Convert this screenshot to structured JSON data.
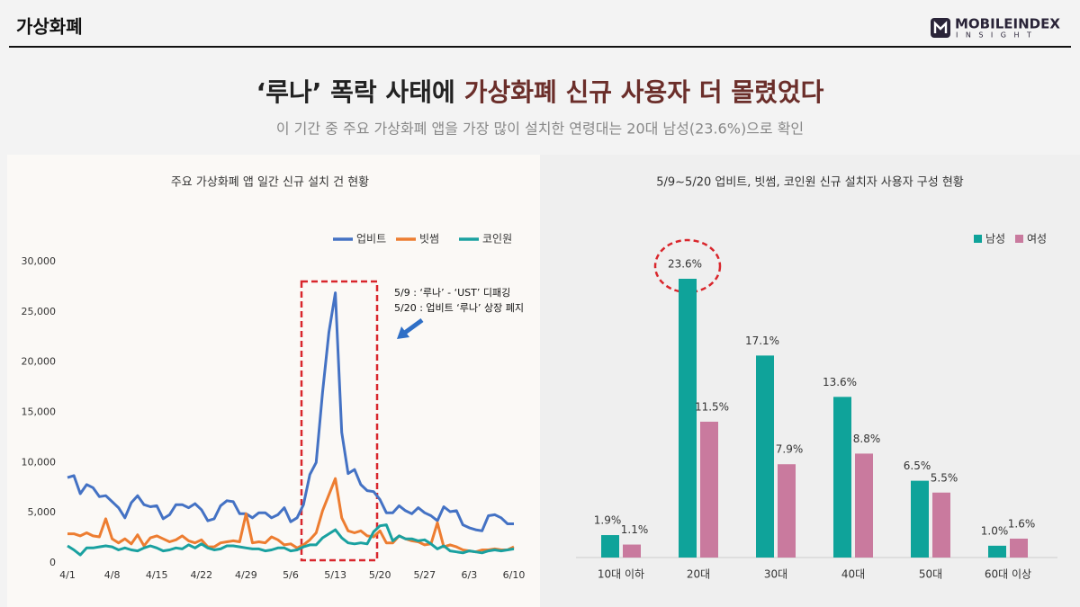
{
  "header": {
    "section": "가상화폐",
    "logo": "MOBILEINDEX",
    "logo_sub": "INSIGHT"
  },
  "headline": {
    "lead": "‘루나’ 폭락 사태에",
    "highlight": "가상화폐 신규 사용자 더 몰렸었다",
    "subtitle": "이 기간 중 주요 가상화폐 앱을 가장 많이 설치한 연령대는 20대 남성(23.6%)으로 확인"
  },
  "chart_data": [
    {
      "type": "line",
      "title": "주요 가상화폐 앱 일간 신규 설치 건 현황",
      "categories": [
        "4/1",
        null,
        null,
        null,
        null,
        null,
        null,
        "4/8",
        null,
        null,
        null,
        null,
        null,
        null,
        "4/15",
        null,
        null,
        null,
        null,
        null,
        null,
        "4/22",
        null,
        null,
        null,
        null,
        null,
        null,
        "4/29",
        null,
        null,
        null,
        null,
        null,
        null,
        "5/6",
        null,
        null,
        null,
        null,
        null,
        null,
        "5/13",
        null,
        null,
        null,
        null,
        null,
        null,
        "5/20",
        null,
        null,
        null,
        null,
        null,
        null,
        "5/27",
        null,
        null,
        null,
        null,
        null,
        null,
        "6/3",
        null,
        null,
        null,
        null,
        null,
        null,
        "6/10"
      ],
      "series": [
        {
          "name": "업비트",
          "color": "#4472c4",
          "values": [
            8500,
            8700,
            6900,
            7800,
            7500,
            6600,
            6700,
            6100,
            5500,
            4500,
            6000,
            6700,
            5800,
            5600,
            5700,
            4400,
            4800,
            5800,
            5800,
            5500,
            5900,
            5300,
            4200,
            4400,
            5700,
            6200,
            6100,
            4900,
            4900,
            4500,
            5000,
            5000,
            4500,
            4800,
            5500,
            4100,
            4500,
            5800,
            8800,
            10000,
            17000,
            23000,
            26900,
            13000,
            8900,
            9300,
            7800,
            7200,
            7100,
            6300,
            5000,
            5000,
            5700,
            5200,
            4900,
            5500,
            5000,
            4700,
            4200,
            5600,
            5100,
            5200,
            3800,
            3500,
            3300,
            3200,
            4700,
            4800,
            4500,
            3900,
            3900
          ]
        },
        {
          "name": "빗썸",
          "color": "#ed7d31",
          "values": [
            2900,
            2900,
            2700,
            3000,
            2700,
            2600,
            4400,
            2400,
            2000,
            2400,
            1900,
            2800,
            1700,
            2500,
            2700,
            2400,
            2100,
            2300,
            2700,
            2200,
            2000,
            2300,
            1600,
            1600,
            2000,
            2100,
            2200,
            2100,
            4900,
            2000,
            2100,
            2000,
            2600,
            2300,
            1800,
            1900,
            1500,
            1800,
            2300,
            3000,
            5200,
            6800,
            8400,
            4500,
            3200,
            3000,
            3200,
            2700,
            2600,
            3200,
            2000,
            2000,
            2700,
            2400,
            2200,
            2100,
            1800,
            1900,
            4000,
            1600,
            1800,
            1600,
            1300,
            1200,
            1100,
            1300,
            1300,
            1400,
            1300,
            1300,
            1600
          ]
        },
        {
          "name": "코인원",
          "color": "#1aa1a0",
          "values": [
            1700,
            1300,
            800,
            1500,
            1500,
            1600,
            1700,
            1600,
            1300,
            1500,
            1300,
            1200,
            1500,
            1700,
            1500,
            1200,
            1300,
            1500,
            1400,
            1800,
            1500,
            1900,
            1500,
            1300,
            1400,
            1700,
            1700,
            1600,
            1500,
            1400,
            1400,
            1200,
            1300,
            1500,
            1500,
            1200,
            1300,
            1600,
            1800,
            1800,
            2500,
            2900,
            3300,
            2500,
            2000,
            1900,
            2000,
            1900,
            3100,
            3700,
            3800,
            2200,
            2700,
            2400,
            2400,
            2200,
            2300,
            1900,
            1400,
            1700,
            1200,
            1100,
            1000,
            1200,
            1100,
            1000,
            1200,
            1300,
            1200,
            1300,
            1400
          ]
        }
      ],
      "ylim": [
        0,
        30000
      ],
      "yticks": [
        0,
        {
          "value": 5000,
          "label": "5,000"
        },
        {
          "value": 10000,
          "label": "10,000"
        },
        {
          "value": 15000,
          "label": "15,000"
        },
        {
          "value": 20000,
          "label": "20,000"
        },
        {
          "value": 25000,
          "label": "25,000"
        },
        {
          "value": 30000,
          "label": "30,000"
        }
      ],
      "grid": false,
      "legend": "top-right",
      "annotations": [
        "5/9 : ‘루나’ - ‘UST’ 디패깅",
        "5/20 : 업비트 ‘루나’ 상장 폐지"
      ]
    },
    {
      "type": "bar",
      "title": "5/9~5/20 업비트, 빗썸, 코인원 신규 설치자 사용자 구성 현황",
      "categories": [
        "10대 이하",
        "20대",
        "30대",
        "40대",
        "50대",
        "60대 이상"
      ],
      "series": [
        {
          "name": "남성",
          "color": "#0fa39a",
          "values": [
            1.9,
            23.6,
            17.1,
            13.6,
            6.5,
            1.0
          ],
          "value_labels": [
            "1.9%",
            "23.6%",
            "17.1%",
            "13.6%",
            "6.5%",
            "1.0%"
          ]
        },
        {
          "name": "여성",
          "color": "#c97a9e",
          "values": [
            1.1,
            11.5,
            7.9,
            8.8,
            5.5,
            1.6
          ],
          "value_labels": [
            "1.1%",
            "11.5%",
            "7.9%",
            "8.8%",
            "5.5%",
            "1.6%"
          ]
        }
      ],
      "legend": "top-right"
    }
  ]
}
